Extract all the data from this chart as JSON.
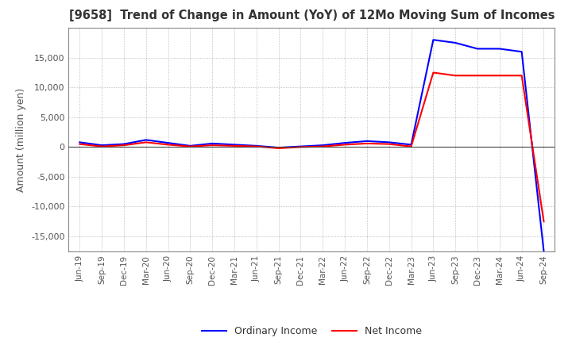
{
  "title": "[9658]  Trend of Change in Amount (YoY) of 12Mo Moving Sum of Incomes",
  "ylabel": "Amount (million yen)",
  "ylim": [
    -17500,
    20000
  ],
  "yticks": [
    -15000,
    -10000,
    -5000,
    0,
    5000,
    10000,
    15000
  ],
  "x_labels": [
    "Jun-19",
    "Sep-19",
    "Dec-19",
    "Mar-20",
    "Jun-20",
    "Sep-20",
    "Dec-20",
    "Mar-21",
    "Jun-21",
    "Sep-21",
    "Dec-21",
    "Mar-22",
    "Jun-22",
    "Sep-22",
    "Dec-22",
    "Mar-23",
    "Jun-23",
    "Sep-23",
    "Dec-23",
    "Mar-24",
    "Jun-24",
    "Sep-24"
  ],
  "ordinary_income": [
    800,
    300,
    500,
    1200,
    700,
    200,
    600,
    400,
    200,
    -100,
    100,
    300,
    700,
    1000,
    800,
    400,
    18000,
    17500,
    16500,
    16500,
    16000,
    -17500
  ],
  "net_income": [
    500,
    100,
    300,
    800,
    400,
    100,
    300,
    200,
    100,
    -200,
    0,
    100,
    400,
    600,
    500,
    100,
    12500,
    12000,
    12000,
    12000,
    12000,
    -12500
  ],
  "ordinary_color": "#0000ff",
  "net_color": "#ff0000",
  "line_width": 1.5,
  "grid_color": "#aaaaaa",
  "background_color": "#ffffff",
  "plot_bg_color": "#ffffff",
  "title_color": "#333333",
  "legend_labels": [
    "Ordinary Income",
    "Net Income"
  ],
  "axhline_color": "#444444",
  "border_color": "#888888"
}
